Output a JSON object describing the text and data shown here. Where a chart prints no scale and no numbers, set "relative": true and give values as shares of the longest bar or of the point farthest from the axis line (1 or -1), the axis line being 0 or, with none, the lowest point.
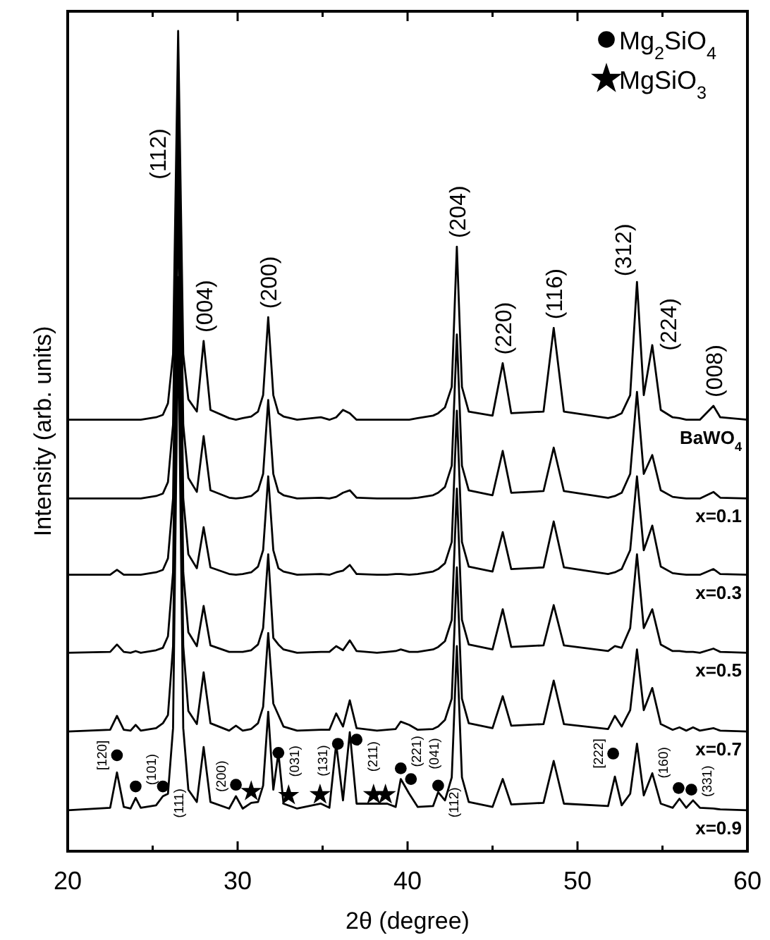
{
  "chart_data": {
    "type": "line",
    "xlabel": "2θ (degree)",
    "ylabel": "Intensity (arb. units)",
    "relative": true,
    "xlim": [
      20,
      60
    ],
    "xticks": [
      20,
      {
        "value": 25,
        "label": null
      },
      30,
      {
        "value": 35,
        "label": null
      },
      40,
      {
        "value": 45,
        "label": null
      },
      50,
      {
        "value": 55,
        "label": null
      },
      60
    ],
    "legend": "top right",
    "line_style": "solid",
    "x": [
      20,
      22.5,
      22.9,
      23.3,
      23.7,
      24.0,
      24.3,
      25.2,
      25.6,
      25.9,
      26.2,
      26.5,
      26.8,
      27.1,
      27.6,
      28.0,
      28.4,
      29.5,
      29.9,
      30.3,
      30.8,
      31.2,
      31.5,
      31.8,
      32.1,
      32.4,
      32.7,
      33.5,
      34.9,
      35.4,
      35.8,
      36.2,
      36.6,
      37.0,
      38.2,
      38.8,
      39.3,
      39.6,
      40.1,
      40.6,
      41.5,
      41.8,
      42.2,
      42.6,
      42.9,
      43.2,
      43.6,
      45.0,
      45.6,
      46.1,
      48.0,
      48.6,
      49.2,
      51.8,
      52.2,
      52.6,
      53.1,
      53.5,
      53.9,
      54.4,
      54.9,
      55.6,
      56.0,
      56.4,
      56.8,
      57.2,
      58.0,
      58.4,
      60
    ],
    "series": [
      {
        "name": "BaWO$_{4}$",
        "color": "#000000",
        "values": [
          0.526,
          0.526,
          0.526,
          0.526,
          0.526,
          0.526,
          0.526,
          0.529,
          0.532,
          0.546,
          0.606,
          1,
          0.606,
          0.551,
          0.536,
          0.622,
          0.538,
          0.528,
          0.526,
          0.528,
          0.53,
          0.536,
          0.556,
          0.651,
          0.556,
          0.534,
          0.53,
          0.526,
          0.529,
          0.526,
          0.529,
          0.538,
          0.534,
          0.526,
          0.526,
          0.526,
          0.526,
          0.526,
          0.526,
          0.528,
          0.531,
          0.534,
          0.541,
          0.566,
          0.737,
          0.566,
          0.536,
          0.531,
          0.595,
          0.534,
          0.536,
          0.638,
          0.536,
          0.528,
          0.53,
          0.534,
          0.556,
          0.694,
          0.556,
          0.617,
          0.538,
          0.529,
          0.528,
          0.526,
          0.526,
          0.526,
          0.543,
          0.529,
          0.526
        ]
      },
      {
        "name": "x=0.1",
        "color": "#000000",
        "values": [
          0.43,
          0.43,
          0.43,
          0.43,
          0.43,
          0.43,
          0.43,
          0.433,
          0.436,
          0.45,
          0.52,
          0.93,
          0.52,
          0.455,
          0.438,
          0.506,
          0.44,
          0.431,
          0.43,
          0.431,
          0.433,
          0.44,
          0.46,
          0.55,
          0.46,
          0.438,
          0.434,
          0.43,
          0.431,
          0.43,
          0.432,
          0.437,
          0.44,
          0.431,
          0.43,
          0.43,
          0.43,
          0.43,
          0.43,
          0.431,
          0.434,
          0.437,
          0.444,
          0.47,
          0.63,
          0.47,
          0.44,
          0.434,
          0.488,
          0.437,
          0.439,
          0.492,
          0.439,
          0.431,
          0.433,
          0.437,
          0.46,
          0.56,
          0.46,
          0.483,
          0.44,
          0.432,
          0.431,
          0.43,
          0.43,
          0.43,
          0.438,
          0.431,
          0.43
        ]
      },
      {
        "name": "x=0.3",
        "color": "#000000",
        "values": [
          0.337,
          0.337,
          0.343,
          0.337,
          0.337,
          0.337,
          0.337,
          0.34,
          0.343,
          0.357,
          0.43,
          0.87,
          0.43,
          0.362,
          0.345,
          0.395,
          0.346,
          0.338,
          0.337,
          0.338,
          0.34,
          0.347,
          0.367,
          0.457,
          0.367,
          0.345,
          0.341,
          0.337,
          0.338,
          0.337,
          0.34,
          0.342,
          0.349,
          0.338,
          0.337,
          0.337,
          0.338,
          0.338,
          0.337,
          0.338,
          0.341,
          0.344,
          0.351,
          0.377,
          0.537,
          0.377,
          0.347,
          0.341,
          0.389,
          0.344,
          0.346,
          0.402,
          0.346,
          0.338,
          0.34,
          0.344,
          0.367,
          0.457,
          0.367,
          0.397,
          0.347,
          0.339,
          0.338,
          0.337,
          0.337,
          0.337,
          0.344,
          0.338,
          0.337
        ]
      },
      {
        "name": "x=0.5",
        "color": "#000000",
        "values": [
          0.242,
          0.243,
          0.252,
          0.243,
          0.242,
          0.244,
          0.242,
          0.245,
          0.248,
          0.262,
          0.34,
          0.8,
          0.34,
          0.267,
          0.25,
          0.299,
          0.251,
          0.243,
          0.243,
          0.243,
          0.245,
          0.252,
          0.272,
          0.362,
          0.26,
          0.252,
          0.246,
          0.242,
          0.243,
          0.243,
          0.25,
          0.245,
          0.257,
          0.244,
          0.242,
          0.243,
          0.244,
          0.246,
          0.243,
          0.243,
          0.246,
          0.249,
          0.256,
          0.282,
          0.442,
          0.282,
          0.252,
          0.246,
          0.295,
          0.249,
          0.251,
          0.3,
          0.251,
          0.244,
          0.25,
          0.248,
          0.272,
          0.362,
          0.272,
          0.295,
          0.252,
          0.244,
          0.244,
          0.243,
          0.243,
          0.242,
          0.247,
          0.243,
          0.242
        ]
      },
      {
        "name": "x=0.7",
        "color": "#000000",
        "values": [
          0.146,
          0.148,
          0.165,
          0.148,
          0.147,
          0.154,
          0.147,
          0.15,
          0.156,
          0.166,
          0.25,
          0.7,
          0.25,
          0.171,
          0.155,
          0.218,
          0.156,
          0.147,
          0.153,
          0.147,
          0.149,
          0.156,
          0.176,
          0.266,
          0.18,
          0.166,
          0.152,
          0.147,
          0.148,
          0.148,
          0.168,
          0.152,
          0.184,
          0.15,
          0.147,
          0.148,
          0.149,
          0.158,
          0.154,
          0.148,
          0.149,
          0.152,
          0.16,
          0.186,
          0.346,
          0.186,
          0.156,
          0.15,
          0.189,
          0.153,
          0.155,
          0.208,
          0.155,
          0.149,
          0.165,
          0.152,
          0.172,
          0.246,
          0.172,
          0.199,
          0.155,
          0.148,
          0.151,
          0.147,
          0.151,
          0.147,
          0.15,
          0.147,
          0.146
        ]
      },
      {
        "name": "x=0.9",
        "color": "#000000",
        "values": [
          0.05,
          0.053,
          0.096,
          0.054,
          0.052,
          0.065,
          0.053,
          0.056,
          0.067,
          0.07,
          0.15,
          0.65,
          0.15,
          0.075,
          0.06,
          0.127,
          0.06,
          0.052,
          0.067,
          0.052,
          0.059,
          0.06,
          0.08,
          0.17,
          0.075,
          0.12,
          0.058,
          0.052,
          0.058,
          0.053,
          0.131,
          0.062,
          0.145,
          0.058,
          0.058,
          0.058,
          0.054,
          0.088,
          0.07,
          0.054,
          0.055,
          0.072,
          0.062,
          0.09,
          0.25,
          0.09,
          0.06,
          0.054,
          0.088,
          0.057,
          0.059,
          0.11,
          0.058,
          0.055,
          0.091,
          0.056,
          0.07,
          0.131,
          0.068,
          0.095,
          0.058,
          0.053,
          0.064,
          0.053,
          0.062,
          0.053,
          0.052,
          0.051,
          0.05
        ]
      },
      {
        "name": "Mg$_{2}$SiO$_{4}$",
        "type": "scatter",
        "color": "#000000",
        "marker": "circle",
        "x": [
          22.9,
          24.0,
          25.6,
          29.9,
          32.4,
          35.9,
          37.0,
          39.6,
          40.2,
          41.8,
          52.1,
          55.95,
          56.7
        ],
        "values": [
          0.117,
          0.079,
          0.079,
          0.081,
          0.12,
          0.131,
          0.136,
          0.101,
          0.088,
          0.08,
          0.119,
          0.077,
          0.075
        ]
      },
      {
        "name": "MgSiO$_{3}$",
        "type": "scatter",
        "color": "#000000",
        "marker": "star",
        "x": [
          30.8,
          33.0,
          34.85,
          38.0,
          38.7
        ],
        "values": [
          0.073,
          0.068,
          0.069,
          0.069,
          0.069
        ]
      }
    ],
    "annotations": [
      {
        "text": "(112)",
        "x": 26.5,
        "y": 0.85
      },
      {
        "text": "(004)",
        "x": 28.0,
        "y": 0.622
      },
      {
        "text": "(200)",
        "x": 31.8,
        "y": 0.651
      },
      {
        "text": "(204)",
        "x": 42.9,
        "y": 0.737
      },
      {
        "text": "(220)",
        "x": 45.6,
        "y": 0.595
      },
      {
        "text": "(116)",
        "x": 48.6,
        "y": 0.638
      },
      {
        "text": "(312)",
        "x": 53.5,
        "y": 0.694
      },
      {
        "text": "(224)",
        "x": 54.4,
        "y": 0.617
      },
      {
        "text": "(008)",
        "x": 58.0,
        "y": 0.543
      },
      {
        "text": "[120]",
        "x": 22.9,
        "y": 0.117
      },
      {
        "text": "(101)",
        "x": 24.0,
        "y": 0.079
      },
      {
        "text": "(111)",
        "x": 25.6,
        "y": 0.079
      },
      {
        "text": "(200)",
        "x": 29.9,
        "y": 0.081
      },
      {
        "text": "(031)",
        "x": 32.4,
        "y": 0.12
      },
      {
        "text": "(131)",
        "x": 35.9,
        "y": 0.131
      },
      {
        "text": "(211)",
        "x": 37.0,
        "y": 0.136
      },
      {
        "text": "(221)",
        "x": 39.6,
        "y": 0.101
      },
      {
        "text": "(041)",
        "x": 40.2,
        "y": 0.088
      },
      {
        "text": "(112)",
        "x": 41.8,
        "y": 0.08
      },
      {
        "text": "[222]",
        "x": 52.1,
        "y": 0.119
      },
      {
        "text": "(160)",
        "x": 55.95,
        "y": 0.077
      },
      {
        "text": "(331)",
        "x": 56.7,
        "y": 0.075
      }
    ]
  }
}
